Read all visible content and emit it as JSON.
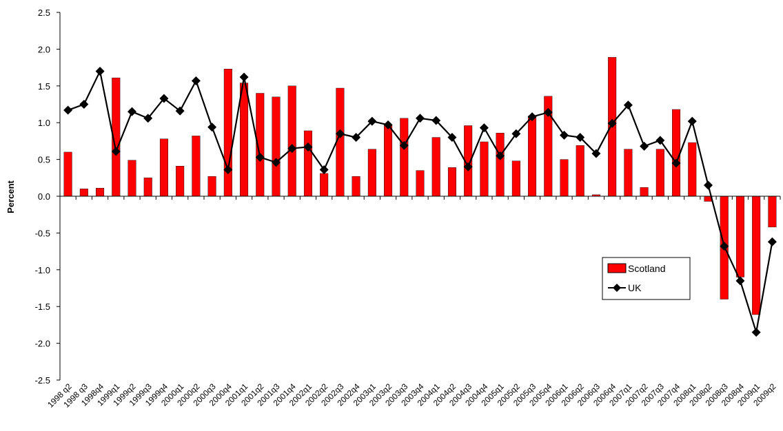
{
  "chart_data": {
    "type": "bar",
    "title": "",
    "xlabel": "",
    "ylabel": "Percent",
    "ylim": [
      -2.5,
      2.5
    ],
    "yticks": [
      "2.5",
      "2.0",
      "1.5",
      "1.0",
      "0.5",
      "0.0",
      "-0.5",
      "-1.0",
      "-1.5",
      "-2.0",
      "-2.5"
    ],
    "ytick_values": [
      2.5,
      2.0,
      1.5,
      1.0,
      0.5,
      0.0,
      -0.5,
      -1.0,
      -1.5,
      -2.0,
      -2.5
    ],
    "grid": false,
    "legend_position": "right",
    "categories": [
      "1998 q2",
      "1998 q3",
      "1998q4",
      "1999q1",
      "1999q2",
      "1999q3",
      "1999q4",
      "2000q1",
      "2000q2",
      "2000q3",
      "2000q4",
      "2001q1",
      "2001q2",
      "2001q3",
      "2001q4",
      "2002q1",
      "2002q2",
      "2002q3",
      "2002q4",
      "2003q1",
      "2003q2",
      "2003q3",
      "2003q4",
      "2004q1",
      "2004q2",
      "2004q3",
      "2004q4",
      "2005q1",
      "2005q2",
      "2005q3",
      "2005q4",
      "2006q1",
      "2006q2",
      "2006q3",
      "2006q4",
      "2007q1",
      "2007q2",
      "2007q3",
      "2007q4",
      "2008q1",
      "2008q2",
      "2008q3",
      "2008q4",
      "2009q1",
      "2009q2"
    ],
    "series": [
      {
        "name": "Scotland",
        "type": "bar",
        "color": "#ff0000",
        "values": [
          0.6,
          0.1,
          0.11,
          1.61,
          0.49,
          0.25,
          0.78,
          0.41,
          0.82,
          0.27,
          1.73,
          1.54,
          1.4,
          1.35,
          1.5,
          0.89,
          0.31,
          1.47,
          0.27,
          0.64,
          0.97,
          1.06,
          0.35,
          0.8,
          0.39,
          0.96,
          0.74,
          0.86,
          0.48,
          1.09,
          1.36,
          0.5,
          0.69,
          0.02,
          1.89,
          0.64,
          0.12,
          0.64,
          1.18,
          0.73,
          -0.07,
          -1.4,
          -1.1,
          -1.61,
          -0.42
        ]
      },
      {
        "name": "UK",
        "type": "line",
        "color": "#000000",
        "values": [
          1.17,
          1.25,
          1.7,
          0.61,
          1.15,
          1.06,
          1.33,
          1.16,
          1.57,
          0.94,
          0.36,
          1.62,
          0.53,
          0.46,
          0.65,
          0.67,
          0.36,
          0.85,
          0.8,
          1.02,
          0.97,
          0.69,
          1.06,
          1.03,
          0.8,
          0.4,
          0.93,
          0.55,
          0.85,
          1.08,
          1.14,
          0.83,
          0.8,
          0.58,
          0.99,
          1.24,
          0.68,
          0.76,
          0.45,
          1.02,
          0.15,
          -0.68,
          -1.15,
          -1.85,
          -0.62
        ]
      }
    ]
  }
}
